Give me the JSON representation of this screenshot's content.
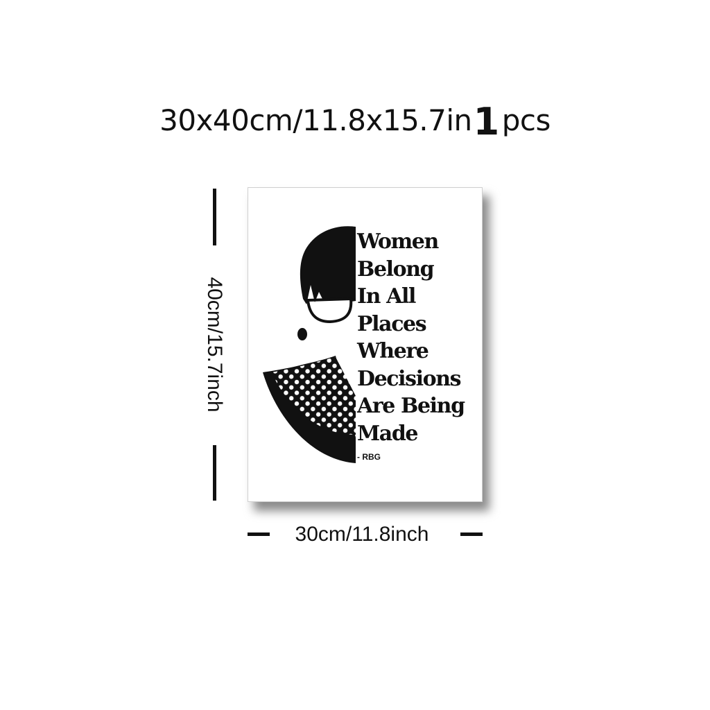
{
  "product": {
    "size_text": "30x40cm/11.8x15.7in",
    "quantity_number": "1",
    "quantity_unit": "pcs"
  },
  "dimensions": {
    "height_label": "40cm/15.7inch",
    "width_label": "30cm/11.8inch"
  },
  "poster": {
    "quote_lines": [
      "Women",
      "Belong",
      "In All",
      "Places",
      "Where",
      "Decisions",
      "Are Being",
      "Made"
    ],
    "attribution": "- RBG"
  },
  "colors": {
    "ink": "#111111",
    "background": "#ffffff",
    "shadow": "#8a8a8a"
  }
}
